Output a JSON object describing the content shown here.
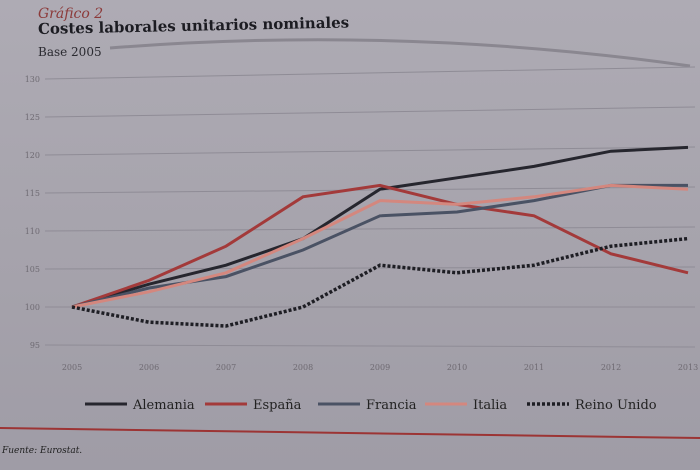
{
  "header": {
    "kicker": "Gráfico 2",
    "title": "Costes laborales unitarios nominales",
    "subtitle": "Base 2005"
  },
  "source": "Fuente: Eurostat.",
  "chart_data": {
    "type": "line",
    "title": "Costes laborales unitarios nominales",
    "subtitle": "Base 2005",
    "xlabel": "",
    "ylabel": "",
    "x": [
      "2005",
      "2006",
      "2007",
      "2008",
      "2009",
      "2010",
      "2011",
      "2012",
      "2013"
    ],
    "yticks": [
      "95",
      "100",
      "105",
      "110",
      "115",
      "120",
      "125",
      "130"
    ],
    "ylim": [
      95,
      130
    ],
    "grid": true,
    "legend_position": "bottom",
    "series": [
      {
        "name": "Alemania",
        "color": "#26262e",
        "dash": "",
        "values": [
          100,
          103,
          105.5,
          109,
          115.5,
          117,
          118.5,
          120.5,
          121
        ]
      },
      {
        "name": "España",
        "color": "#a33a3a",
        "dash": "",
        "values": [
          100,
          103.5,
          108,
          114.5,
          116,
          113.5,
          112,
          107,
          104.5
        ]
      },
      {
        "name": "Francia",
        "color": "#4a5264",
        "dash": "",
        "values": [
          100,
          102.5,
          104,
          107.5,
          112,
          112.5,
          114,
          116,
          116
        ]
      },
      {
        "name": "Italia",
        "color": "#d4877e",
        "dash": "",
        "values": [
          100,
          102,
          104.5,
          109,
          114,
          113.5,
          114.5,
          116,
          115.5
        ]
      },
      {
        "name": "Reino Unido",
        "color": "#1e1e24",
        "dash": "3,2",
        "values": [
          100,
          98,
          97.5,
          100,
          105.5,
          104.5,
          105.5,
          108,
          109
        ]
      }
    ]
  }
}
